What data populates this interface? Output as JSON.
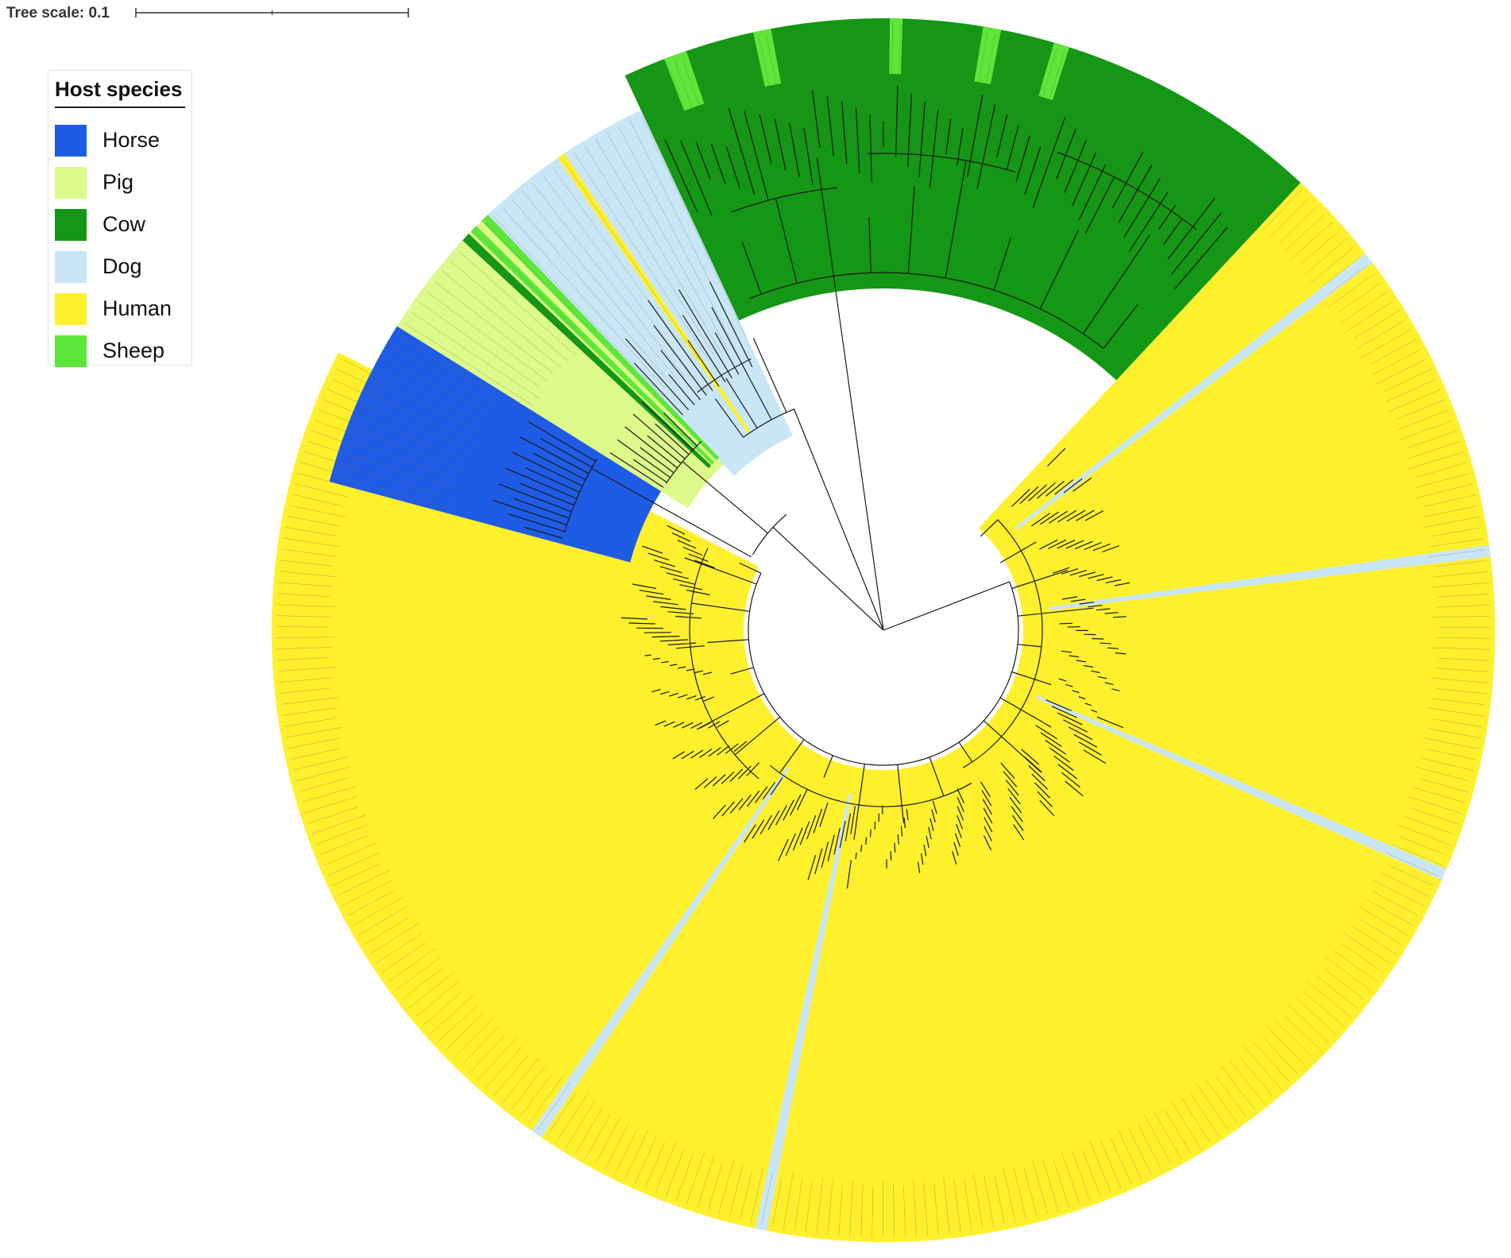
{
  "tree_scale": {
    "label": "Tree scale: 0.1"
  },
  "legend": {
    "title": "Host species",
    "items": [
      {
        "label": "Horse",
        "color": "#1f5ce6"
      },
      {
        "label": "Pig",
        "color": "#dcf98a"
      },
      {
        "label": "Cow",
        "color": "#149714"
      },
      {
        "label": "Dog",
        "color": "#c9e6f7"
      },
      {
        "label": "Human",
        "color": "#fff02e"
      },
      {
        "label": "Sheep",
        "color": "#5ee63a"
      }
    ]
  }
}
